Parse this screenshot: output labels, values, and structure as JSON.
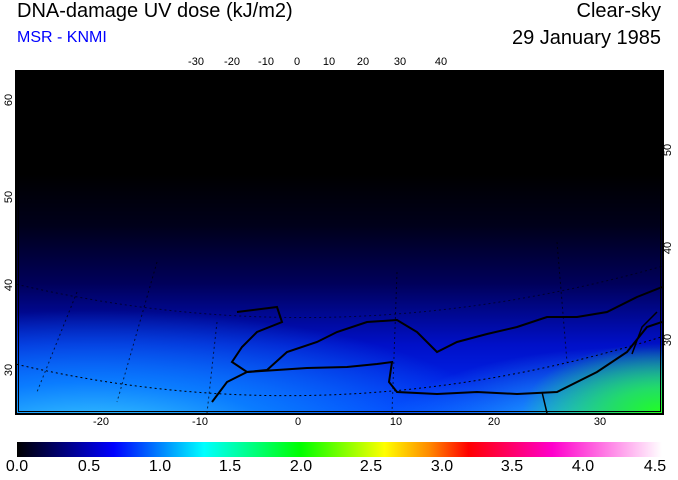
{
  "header": {
    "title": "DNA-damage UV dose (kJ/m2)",
    "source": "MSR - KNMI",
    "condition": "Clear-sky",
    "date": "29 January 1985"
  },
  "map": {
    "top_lon_ticks": [
      "-30",
      "-20",
      "-10",
      "0",
      "10",
      "20",
      "30",
      "40"
    ],
    "bottom_lon_ticks": [
      "-20",
      "-10",
      "0",
      "10",
      "20",
      "30"
    ],
    "left_lat_ticks": [
      "60",
      "50",
      "40",
      "30"
    ],
    "right_lat_ticks": [
      "50",
      "40",
      "30"
    ]
  },
  "colorbar": {
    "labels": [
      "0.0",
      "0.5",
      "1.0",
      "1.5",
      "2.0",
      "2.5",
      "3.0",
      "3.5",
      "4.0",
      "4.5"
    ],
    "min": 0.0,
    "max": 4.5,
    "colors": [
      "#000000",
      "#0000ff",
      "#00ffff",
      "#00ff00",
      "#ffff00",
      "#ff0000",
      "#ff00cc",
      "#ffffff"
    ]
  }
}
